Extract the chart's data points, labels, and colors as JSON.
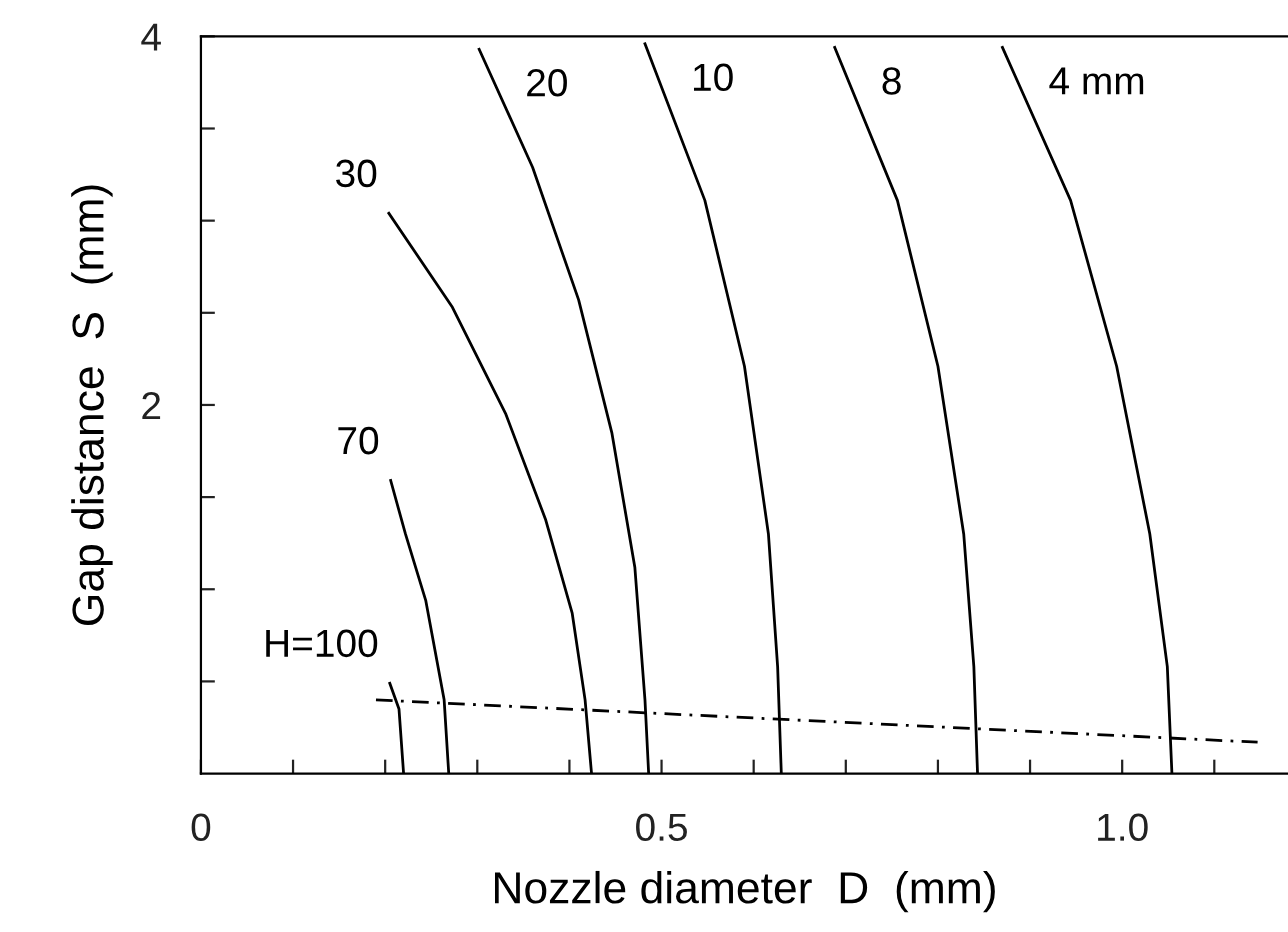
{
  "chart_data": {
    "type": "line",
    "xlabel": "Nozzle diameter  D  (mm)",
    "ylabel": "Gap distance  S  (mm)",
    "xlim": [
      0,
      1.18
    ],
    "ylim": [
      0,
      4
    ],
    "xticks": [
      {
        "value": 0,
        "label": "0"
      },
      {
        "value": 0.1,
        "label": null
      },
      {
        "value": 0.2,
        "label": null
      },
      {
        "value": 0.3,
        "label": null
      },
      {
        "value": 0.4,
        "label": null
      },
      {
        "value": 0.5,
        "label": "0.5"
      },
      {
        "value": 0.6,
        "label": null
      },
      {
        "value": 0.7,
        "label": null
      },
      {
        "value": 0.8,
        "label": null
      },
      {
        "value": 0.9,
        "label": null
      },
      {
        "value": 1.0,
        "label": "1.0"
      },
      {
        "value": 1.1,
        "label": null
      }
    ],
    "yticks": [
      {
        "value": 0.5,
        "label": null
      },
      {
        "value": 1,
        "label": null
      },
      {
        "value": 1.5,
        "label": null
      },
      2,
      {
        "value": 2.5,
        "label": null
      },
      {
        "value": 3,
        "label": null
      },
      {
        "value": 3.5,
        "label": null
      },
      4
    ],
    "grid": false,
    "legend": false,
    "marker": "none",
    "series": [
      {
        "name": "H=100",
        "color": "#000000",
        "line_style": "solid",
        "x": [
          0.205,
          0.215,
          0.22
        ],
        "values": [
          0.49,
          0.35,
          0
        ]
      },
      {
        "name": "70",
        "color": "#000000",
        "line_style": "solid",
        "x": [
          0.206,
          0.222,
          0.244,
          0.264,
          0.269
        ],
        "values": [
          1.59,
          1.3,
          0.94,
          0.4,
          0
        ]
      },
      {
        "name": "30",
        "color": "#000000",
        "line_style": "solid",
        "x": [
          0.204,
          0.273,
          0.331,
          0.374,
          0.403,
          0.417,
          0.424
        ],
        "values": [
          3.04,
          2.53,
          1.95,
          1.38,
          0.87,
          0.4,
          0
        ]
      },
      {
        "name": "20",
        "color": "#000000",
        "line_style": "solid",
        "x": [
          0.302,
          0.36,
          0.41,
          0.446,
          0.471,
          0.482,
          0.486
        ],
        "values": [
          3.93,
          3.29,
          2.57,
          1.85,
          1.12,
          0.4,
          0
        ]
      },
      {
        "name": "10",
        "color": "#000000",
        "line_style": "solid",
        "x": [
          0.482,
          0.547,
          0.59,
          0.616,
          0.626,
          0.63
        ],
        "values": [
          3.96,
          3.11,
          2.21,
          1.3,
          0.58,
          0
        ]
      },
      {
        "name": "8",
        "color": "#000000",
        "line_style": "solid",
        "x": [
          0.688,
          0.756,
          0.8,
          0.828,
          0.839,
          0.843
        ],
        "values": [
          3.94,
          3.11,
          2.21,
          1.3,
          0.58,
          0
        ]
      },
      {
        "name": "4 mm",
        "color": "#000000",
        "line_style": "solid",
        "x": [
          0.87,
          0.944,
          0.994,
          1.03,
          1.049,
          1.054
        ],
        "values": [
          3.94,
          3.11,
          2.21,
          1.3,
          0.58,
          0
        ]
      },
      {
        "color": "#000000",
        "line_style": "dashed",
        "x": [
          0.19,
          1.147
        ],
        "values": [
          0.4,
          0.17
        ]
      }
    ]
  }
}
